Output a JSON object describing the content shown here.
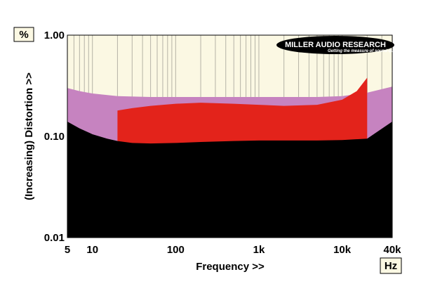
{
  "chart_data": {
    "type": "area",
    "ylabel": "(Increasing) Distortion >>",
    "xlabel": "Frequency >>",
    "y_unit": "%",
    "x_unit": "Hz",
    "x_scale": "log",
    "y_scale": "log",
    "xlim": [
      5,
      40000
    ],
    "ylim": [
      0.01,
      1.0
    ],
    "x_ticks": [
      {
        "value": 5,
        "label": "5"
      },
      {
        "value": 10,
        "label": "10"
      },
      {
        "value": 100,
        "label": "100"
      },
      {
        "value": 1000,
        "label": "1k"
      },
      {
        "value": 10000,
        "label": "10k"
      },
      {
        "value": 40000,
        "label": "40k"
      }
    ],
    "y_ticks": [
      {
        "value": 1.0,
        "label": "1.00"
      },
      {
        "value": 0.1,
        "label": "0.10"
      },
      {
        "value": 0.01,
        "label": "0.01"
      }
    ],
    "grid": true,
    "series": [
      {
        "color": "#c683c0",
        "x": [
          5,
          7,
          10,
          20,
          50,
          100,
          200,
          500,
          1000,
          2000,
          5000,
          10000,
          20000,
          40000
        ],
        "values": [
          0.3,
          0.28,
          0.265,
          0.25,
          0.245,
          0.245,
          0.245,
          0.245,
          0.245,
          0.245,
          0.245,
          0.25,
          0.27,
          0.31
        ]
      },
      {
        "color": "#e3231b",
        "x": [
          20,
          30,
          50,
          100,
          200,
          500,
          1000,
          2000,
          5000,
          10000,
          15000,
          20000
        ],
        "values": [
          0.18,
          0.19,
          0.2,
          0.21,
          0.215,
          0.21,
          0.205,
          0.2,
          0.205,
          0.23,
          0.28,
          0.38
        ]
      },
      {
        "color": "#000000",
        "x": [
          5,
          7,
          10,
          15,
          20,
          30,
          50,
          100,
          200,
          500,
          1000,
          2000,
          5000,
          10000,
          20000,
          40000
        ],
        "values": [
          0.14,
          0.12,
          0.105,
          0.095,
          0.09,
          0.086,
          0.085,
          0.086,
          0.088,
          0.09,
          0.091,
          0.091,
          0.091,
          0.092,
          0.095,
          0.14
        ]
      }
    ],
    "colors": {
      "plot_background": "#fbf8e3",
      "gridline": "#b5b3a6"
    }
  },
  "brand": {
    "name": "MILLER AUDIO RESEARCH",
    "tagline": "Getting the measure of sound quality"
  }
}
